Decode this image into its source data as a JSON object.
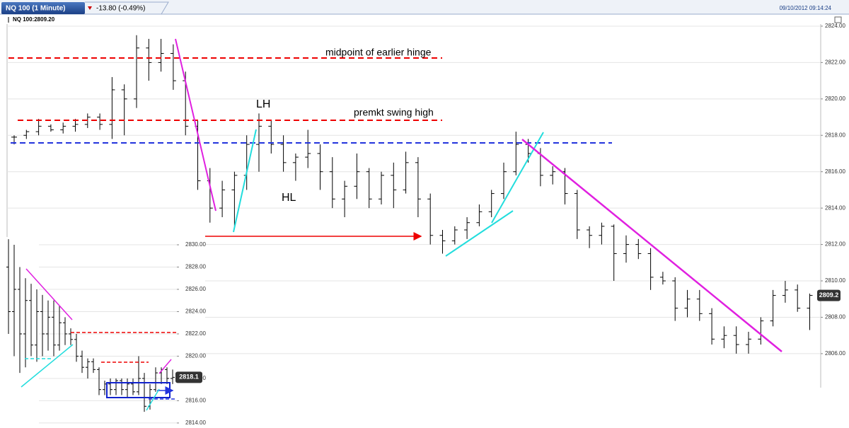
{
  "header": {
    "tab": "NQ 100 (1 Minute)",
    "change": "-13.80 (-0.49%)",
    "timestamp": "09/10/2012 09:14:24"
  },
  "chart_data": [
    {
      "type": "ohlc",
      "title": "NQ 100:2809.20",
      "annotations": [
        "midpoint of earlier hinge",
        "premkt swing high",
        "LH",
        "HL"
      ],
      "last_price": 2809.2,
      "open": [
        2817.9,
        2818.0,
        2818.2,
        2818.5,
        2818.3,
        2818.5,
        2818.6,
        2819.0,
        2818.6,
        2820.5,
        2820.0,
        2822.8,
        2822.0,
        2822.5,
        2821.0,
        2818.5,
        2815.5,
        2814.0,
        2815.0,
        2815.8,
        2817.5,
        2818.5,
        2817.5,
        2816.5,
        2816.8,
        2817.0,
        2816.0,
        2814.5,
        2815.2,
        2816.0,
        2814.5,
        2815.8,
        2815.0,
        2816.5,
        2814.5,
        2812.5,
        2812.2,
        2812.8,
        2813.2,
        2813.8,
        2814.8,
        2816.0,
        2817.5,
        2817.0,
        2815.8,
        2816.0,
        2814.8,
        2812.8,
        2812.5,
        2813.0,
        2811.5,
        2812.0,
        2811.5,
        2810.2,
        2810.0,
        2808.5,
        2809.0,
        2808.2,
        2806.8,
        2807.0,
        2806.5,
        2806.8,
        2807.8,
        2809.2,
        2809.5,
        2808.5
      ],
      "high": [
        2818.0,
        2818.3,
        2818.9,
        2818.6,
        2818.7,
        2818.9,
        2819.2,
        2819.2,
        2821.2,
        2820.8,
        2823.5,
        2823.3,
        2823.3,
        2823.0,
        2821.5,
        2818.8,
        2816.2,
        2815.5,
        2816.0,
        2818.0,
        2819.2,
        2818.8,
        2818.0,
        2817.0,
        2818.3,
        2817.5,
        2816.8,
        2815.5,
        2817.0,
        2816.2,
        2816.0,
        2816.5,
        2817.1,
        2816.8,
        2814.8,
        2812.8,
        2813.0,
        2813.5,
        2814.2,
        2815.0,
        2816.5,
        2818.2,
        2817.8,
        2817.3,
        2816.3,
        2816.2,
        2815.0,
        2813.0,
        2813.2,
        2813.1,
        2812.5,
        2812.3,
        2811.8,
        2810.5,
        2810.2,
        2809.5,
        2809.5,
        2808.5,
        2807.5,
        2807.5,
        2807.2,
        2808.0,
        2809.5,
        2810.0,
        2809.8,
        2809.3
      ],
      "low": [
        2817.5,
        2817.8,
        2818.0,
        2818.2,
        2818.1,
        2818.2,
        2818.4,
        2818.3,
        2817.8,
        2818.0,
        2819.5,
        2821.0,
        2821.5,
        2820.5,
        2818.0,
        2815.0,
        2813.2,
        2813.5,
        2813.0,
        2815.0,
        2816.0,
        2817.0,
        2816.0,
        2815.5,
        2816.2,
        2815.0,
        2814.0,
        2813.5,
        2814.5,
        2814.0,
        2814.2,
        2814.0,
        2814.8,
        2813.5,
        2812.0,
        2811.5,
        2812.0,
        2812.3,
        2813.0,
        2813.5,
        2814.5,
        2815.8,
        2816.5,
        2815.2,
        2815.3,
        2814.2,
        2812.3,
        2811.8,
        2812.0,
        2810.0,
        2811.0,
        2811.2,
        2809.5,
        2809.8,
        2807.8,
        2808.0,
        2807.8,
        2806.5,
        2806.3,
        2806.0,
        2806.0,
        2806.5,
        2807.5,
        2808.8,
        2808.3,
        2807.3
      ],
      "close": [
        2817.9,
        2818.2,
        2818.5,
        2818.3,
        2818.5,
        2818.6,
        2819.0,
        2818.6,
        2820.5,
        2820.0,
        2822.8,
        2822.0,
        2822.5,
        2821.0,
        2818.5,
        2815.5,
        2814.0,
        2815.0,
        2815.8,
        2817.5,
        2818.5,
        2817.5,
        2816.5,
        2816.8,
        2817.0,
        2816.0,
        2814.5,
        2815.2,
        2816.0,
        2814.5,
        2815.8,
        2815.0,
        2816.5,
        2814.5,
        2812.5,
        2812.2,
        2812.8,
        2813.2,
        2813.8,
        2814.8,
        2816.0,
        2817.5,
        2817.0,
        2815.8,
        2816.0,
        2814.8,
        2812.8,
        2812.5,
        2813.0,
        2811.5,
        2812.0,
        2811.5,
        2810.2,
        2810.0,
        2808.5,
        2809.0,
        2808.2,
        2806.8,
        2807.0,
        2806.5,
        2806.8,
        2807.8,
        2809.2,
        2809.5,
        2808.5,
        2809.2
      ],
      "ylim": [
        2804.13,
        2824.27
      ],
      "yticks": [
        {
          "value": 2806,
          "label": "2806.00"
        },
        {
          "value": 2808,
          "label": "2808.00"
        },
        {
          "value": 2810,
          "label": "2810.00"
        },
        {
          "value": 2812,
          "label": "2812.00"
        },
        {
          "value": 2814,
          "label": "2814.00"
        },
        {
          "value": 2816,
          "label": "2816.00"
        },
        {
          "value": 2818,
          "label": "2818.00"
        },
        {
          "value": 2820,
          "label": "2820.00"
        },
        {
          "value": 2822,
          "label": "2822.00"
        },
        {
          "value": 2824,
          "label": "2824.00"
        }
      ],
      "grid": true,
      "color": "#000000"
    },
    {
      "type": "ohlc",
      "last_price": 2818.1,
      "open": [
        2828,
        2824,
        2826,
        2822,
        2825,
        2821,
        2824,
        2822,
        2823.5,
        2821,
        2823,
        2822,
        2821.5,
        2820,
        2819,
        2819.5,
        2818.8,
        2817,
        2817.5,
        2817,
        2817.8,
        2817,
        2817.5,
        2816.8,
        2818,
        2815.5,
        2817,
        2818.5,
        2818.8,
        2818
      ],
      "high": [
        2830.5,
        2830,
        2828,
        2827,
        2826.5,
        2826,
        2825.5,
        2825,
        2825,
        2824.5,
        2823.5,
        2822.5,
        2822,
        2820.5,
        2819.8,
        2819.8,
        2819,
        2817.8,
        2818,
        2818,
        2818,
        2818,
        2818,
        2820,
        2818.5,
        2817.5,
        2819,
        2819,
        2819,
        2818.8
      ],
      "low": [
        2822,
        2820,
        2818.5,
        2819,
        2820,
        2819.5,
        2820,
        2820.5,
        2820,
        2820.5,
        2821,
        2821,
        2819.5,
        2818.5,
        2818,
        2818.5,
        2816.5,
        2816.5,
        2816.5,
        2816.5,
        2816.5,
        2816.3,
        2816.5,
        2816.5,
        2815,
        2815.2,
        2816.8,
        2817.5,
        2817.5,
        2817.5
      ],
      "close": [
        2824,
        2826,
        2822,
        2825,
        2821,
        2824,
        2822,
        2823.5,
        2821,
        2823,
        2822,
        2821.5,
        2820,
        2819,
        2819.5,
        2818.8,
        2817,
        2817.5,
        2817,
        2817.8,
        2817,
        2817.5,
        2816.8,
        2818,
        2815.5,
        2817,
        2818.5,
        2818.8,
        2818,
        2818.1
      ],
      "ylim": [
        2813.55,
        2830.7
      ],
      "yticks": [
        {
          "value": 2814,
          "label": "2814.00"
        },
        {
          "value": 2816,
          "label": "2816.00"
        },
        {
          "value": 2818,
          "label": "2818.00"
        },
        {
          "value": 2820,
          "label": "2820.00"
        },
        {
          "value": 2822,
          "label": "2822.00"
        },
        {
          "value": 2824,
          "label": "2824.00"
        },
        {
          "value": 2826,
          "label": "2826.00"
        },
        {
          "value": 2828,
          "label": "2828.00"
        },
        {
          "value": 2830,
          "label": "2830.00"
        }
      ],
      "grid": true,
      "color": "#000000"
    }
  ]
}
